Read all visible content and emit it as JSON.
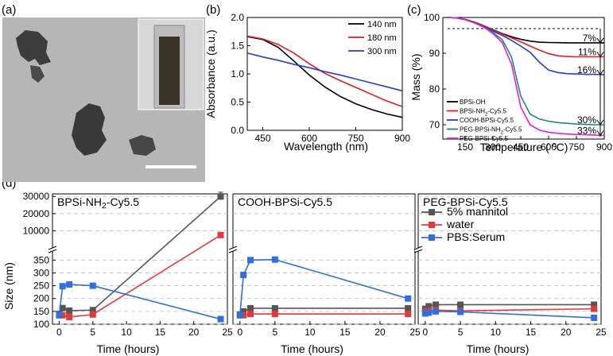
{
  "figure": {
    "panels": {
      "a": "(a)",
      "b": "(b)",
      "c": "(c)",
      "d": "(d)"
    },
    "subpanel_titles": [
      "BPSi-NH2-Cy5.5",
      "COOH-BPSi-Cy5.5",
      "PEG-BPSi-Cy5.5"
    ]
  },
  "micrograph": {
    "type": "TEM image with inset photo of cuvette",
    "scale_bar_color": "#ffffff",
    "background_color": "#b4b4b4"
  },
  "chart_data": [
    {
      "id": "b",
      "type": "line",
      "title": "",
      "xlabel": "Wavelength (nm)",
      "ylabel": "Absorbance (a.u.)",
      "xlim": [
        400,
        900
      ],
      "ylim": [
        0,
        2.0
      ],
      "xticks": [
        "450",
        "600",
        "750",
        "900"
      ],
      "yticks": [
        "0.0",
        "0.5",
        "1.0",
        "1.5",
        "2.0"
      ],
      "legend_position": "top-right",
      "x": [
        400,
        450,
        500,
        550,
        600,
        650,
        700,
        750,
        800,
        850,
        900
      ],
      "series": [
        {
          "name": "140 nm",
          "color": "#000000",
          "values": [
            1.66,
            1.61,
            1.47,
            1.23,
            0.98,
            0.77,
            0.6,
            0.47,
            0.37,
            0.29,
            0.23
          ]
        },
        {
          "name": "180 nm",
          "color": "#e41a1c",
          "values": [
            1.67,
            1.62,
            1.52,
            1.37,
            1.18,
            1.01,
            0.88,
            0.76,
            0.64,
            0.52,
            0.42
          ]
        },
        {
          "name": "300 nm",
          "color": "#1f3fd6",
          "values": [
            1.37,
            1.3,
            1.24,
            1.17,
            1.11,
            1.04,
            0.98,
            0.91,
            0.84,
            0.77,
            0.7
          ]
        }
      ]
    },
    {
      "id": "c",
      "type": "line",
      "title": "",
      "xlabel": "Temperature (°C)",
      "ylabel": "Mass (%)",
      "xlim": [
        30,
        900
      ],
      "ylim": [
        66,
        100
      ],
      "xticks": [
        "150",
        "300",
        "450",
        "600",
        "750",
        "900"
      ],
      "yticks": [
        "70",
        "80",
        "90",
        "100"
      ],
      "legend_position": "bottom-left",
      "annotations": [
        "7%",
        "11%",
        "16%",
        "30%",
        "33%"
      ],
      "x": [
        50,
        100,
        150,
        200,
        250,
        300,
        350,
        400,
        450,
        500,
        550,
        600,
        650,
        700,
        750,
        800,
        850,
        900
      ],
      "series": [
        {
          "name": "BPSi-OH",
          "color": "#000000",
          "values": [
            100,
            99.9,
            99.5,
            98.7,
            97.7,
            96.6,
            95.5,
            94.6,
            93.9,
            93.4,
            93.1,
            93.0,
            92.95,
            92.9,
            92.9,
            92.9,
            92.9,
            92.9
          ]
        },
        {
          "name": "BPSi-NH2-Cy5.5",
          "color": "#e41a1c",
          "values": [
            100,
            99.9,
            99.4,
            98.6,
            97.6,
            96.5,
            95.4,
            94.3,
            93.2,
            92.0,
            90.9,
            89.9,
            89.3,
            89.1,
            89.0,
            89.0,
            89.0,
            89.0
          ]
        },
        {
          "name": "COOH-BPSi-Cy5.5",
          "color": "#1f3fd6",
          "values": [
            100,
            99.9,
            99.4,
            98.5,
            97.4,
            96.2,
            95.0,
            93.6,
            92.0,
            90.3,
            87.5,
            85.3,
            84.6,
            84.3,
            84.2,
            84.1,
            84.1,
            84.0
          ]
        },
        {
          "name": "PEG-BPSi-NH2-Cy5.5",
          "color": "#1a8a7a",
          "values": [
            100,
            99.9,
            99.4,
            98.5,
            97.3,
            95.8,
            93.8,
            89.0,
            78.0,
            73.0,
            71.6,
            71.0,
            70.6,
            70.4,
            70.2,
            70.1,
            70.0,
            70.0
          ]
        },
        {
          "name": "PEG-BPSi-Cy5.5",
          "color": "#e020e0",
          "values": [
            100,
            99.9,
            99.4,
            98.5,
            97.3,
            95.5,
            93.0,
            87.0,
            75.0,
            70.0,
            68.5,
            67.9,
            67.6,
            67.4,
            67.3,
            67.2,
            67.1,
            67.0
          ]
        }
      ]
    },
    {
      "id": "d",
      "type": "line",
      "xlabel": "Time (hours)",
      "ylabel": "Size (nm)",
      "xlim": [
        -1,
        25
      ],
      "xticks": [
        "0",
        "5",
        "10",
        "15",
        "20",
        "25"
      ],
      "yticks_upper": [
        "10000",
        "20000",
        "30000"
      ],
      "yticks_lower": [
        "100",
        "150",
        "200",
        "250",
        "300",
        "350"
      ],
      "broken_axis": true,
      "legend_position": "top-right",
      "legend": [
        {
          "name": "5% mannitol",
          "color": "#555555"
        },
        {
          "name": "water",
          "color": "#e8373a"
        },
        {
          "name": "PBS:Serum",
          "color": "#2f6fe0"
        }
      ],
      "subplots": [
        {
          "title": "BPSi-NH2-Cy5.5",
          "series": [
            {
              "name": "5% mannitol",
              "color": "#555555",
              "x": [
                0,
                0.5,
                1.5,
                5,
                24
              ],
              "values": [
                140,
                163,
                153,
                155,
                30000
              ]
            },
            {
              "name": "water",
              "color": "#e8373a",
              "x": [
                0,
                0.5,
                1.5,
                5,
                24
              ],
              "values": [
                135,
                135,
                128,
                138,
                7500
              ]
            },
            {
              "name": "PBS:Serum",
              "color": "#2f6fe0",
              "x": [
                0,
                0.5,
                1.5,
                5,
                24
              ],
              "values": [
                135,
                248,
                255,
                250,
                120
              ]
            }
          ]
        },
        {
          "title": "COOH-BPSi-Cy5.5",
          "series": [
            {
              "name": "5% mannitol",
              "color": "#555555",
              "x": [
                0,
                0.5,
                1.5,
                5,
                24
              ],
              "values": [
                138,
                150,
                162,
                162,
                162
              ]
            },
            {
              "name": "water",
              "color": "#e8373a",
              "x": [
                0,
                0.5,
                1.5,
                5,
                24
              ],
              "values": [
                135,
                135,
                140,
                140,
                140
              ]
            },
            {
              "name": "PBS:Serum",
              "color": "#2f6fe0",
              "x": [
                0,
                0.5,
                1.5,
                5,
                24
              ],
              "values": [
                135,
                292,
                350,
                352,
                200
              ]
            }
          ]
        },
        {
          "title": "PEG-BPSi-Cy5.5",
          "series": [
            {
              "name": "5% mannitol",
              "color": "#555555",
              "x": [
                0,
                0.5,
                1.5,
                5,
                24
              ],
              "values": [
                160,
                170,
                176,
                176,
                176
              ]
            },
            {
              "name": "water",
              "color": "#e8373a",
              "x": [
                0,
                0.5,
                1.5,
                5,
                24
              ],
              "values": [
                150,
                152,
                155,
                152,
                160
              ]
            },
            {
              "name": "PBS:Serum",
              "color": "#2f6fe0",
              "x": [
                0,
                0.5,
                1.5,
                5,
                24
              ],
              "values": [
                142,
                145,
                150,
                148,
                125
              ]
            }
          ]
        }
      ]
    }
  ]
}
